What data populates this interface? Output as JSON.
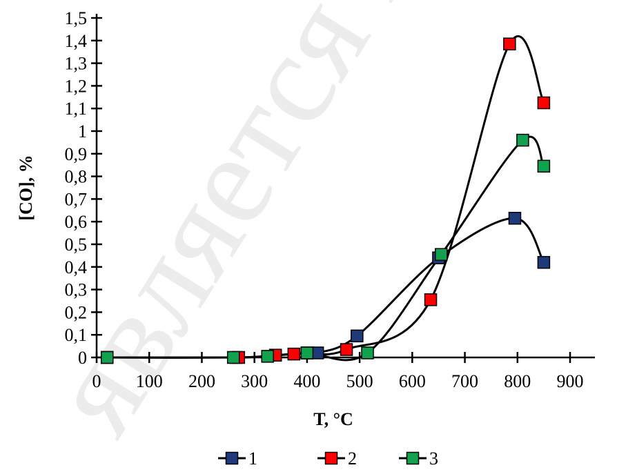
{
  "colors": {
    "line": "#000000",
    "series_1": "#1f3a7a",
    "series_2": "#ff0000",
    "series_3": "#12a14f"
  },
  "chart_data": {
    "type": "scatter",
    "title": "",
    "xlabel": "T, °C",
    "ylabel": "[CO], %",
    "xlim": [
      0,
      900
    ],
    "ylim": [
      0,
      1.5
    ],
    "x_ticks": [
      "0",
      "100",
      "200",
      "300",
      "400",
      "500",
      "600",
      "700",
      "800",
      "900"
    ],
    "y_ticks": [
      "0",
      "0,1",
      "0,2",
      "0,3",
      "0,4",
      "0,5",
      "0,6",
      "0,7",
      "0,8",
      "0,9",
      "1",
      "1,1",
      "1,2",
      "1,3",
      "1,4",
      "1,5"
    ],
    "grid": false,
    "legend_position": "bottom",
    "smooth_lines": true,
    "series": [
      {
        "name": "1",
        "color": "#1f3a7a",
        "x": [
          20,
          265,
          340,
          400,
          420,
          495,
          650,
          795,
          850
        ],
        "y": [
          0,
          0,
          0.01,
          0.02,
          0.02,
          0.095,
          0.44,
          0.615,
          0.42
        ]
      },
      {
        "name": "2",
        "color": "#ff0000",
        "x": [
          20,
          270,
          340,
          375,
          400,
          475,
          635,
          785,
          850
        ],
        "y": [
          0,
          0,
          0.01,
          0.015,
          0.02,
          0.035,
          0.255,
          1.385,
          1.125
        ]
      },
      {
        "name": "3",
        "color": "#12a14f",
        "x": [
          20,
          260,
          325,
          400,
          515,
          655,
          810,
          850
        ],
        "y": [
          0,
          0,
          0.005,
          0.02,
          0.02,
          0.455,
          0.96,
          0.845
        ]
      }
    ]
  }
}
